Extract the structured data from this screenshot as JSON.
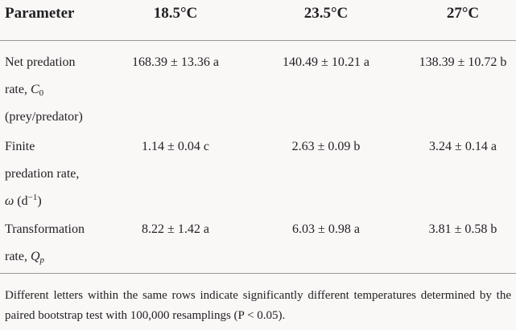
{
  "table": {
    "header": [
      "Parameter",
      "18.5°C",
      "23.5°C",
      "27°C"
    ],
    "rows": [
      {
        "parameter": {
          "line1": "Net predation",
          "line2": "rate,",
          "symbol": "C",
          "subscript": "0",
          "line3": "(prey/predator)"
        },
        "values": [
          "168.39 ± 13.36 a",
          "140.49 ± 10.21 a",
          "138.39 ± 10.72 b"
        ]
      },
      {
        "parameter": {
          "line1": "Finite",
          "line2": "predation rate,",
          "symbol": "ω",
          "unit": "(d",
          "superscript": "−1",
          "unit_end": ")"
        },
        "values": [
          "1.14 ± 0.04 c",
          "2.63 ± 0.09 b",
          "3.24 ± 0.14 a"
        ]
      },
      {
        "parameter": {
          "line1": "Transformation",
          "line2": "rate,",
          "symbol": "Q",
          "subscript": "p"
        },
        "values": [
          "8.22 ± 1.42 a",
          "6.03 ± 0.98 a",
          "3.81 ± 0.58 b"
        ]
      }
    ],
    "footnote": "Different letters within the same rows indicate significantly different temperatures determined by the paired bootstrap test with 100,000 resamplings (P < 0.05)."
  }
}
